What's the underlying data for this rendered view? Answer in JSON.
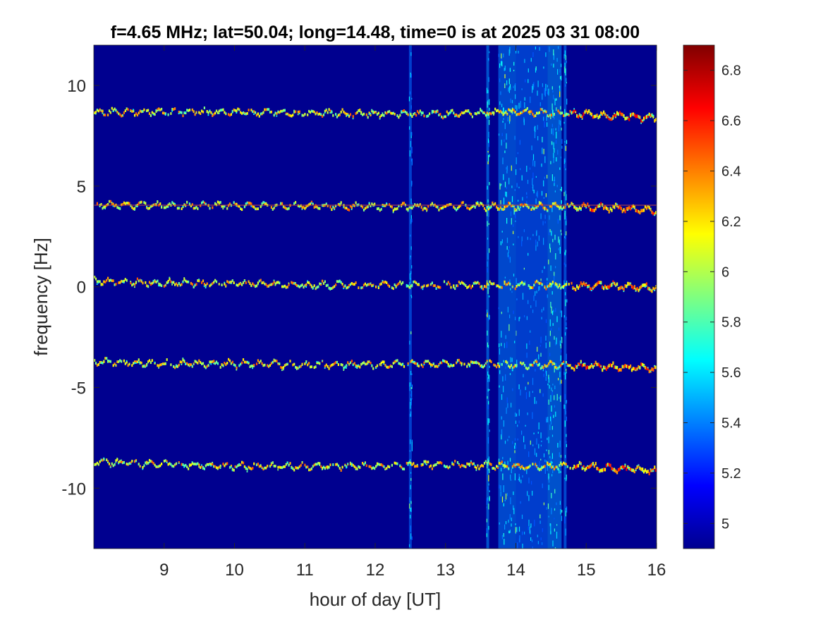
{
  "chart_data": {
    "type": "heatmap",
    "title": "f=4.65 MHz;  lat=50.04; long=14.48, time=0 is at 2025 03 31 08:00",
    "xlabel": "hour of day [UT]",
    "ylabel": "frequency [Hz]",
    "xlim": [
      8,
      16
    ],
    "ylim": [
      -13,
      12
    ],
    "xticks": [
      9,
      10,
      11,
      12,
      13,
      14,
      15,
      16
    ],
    "yticks": [
      10,
      5,
      0,
      -5,
      -10
    ],
    "colormap": "jet",
    "background_color": "#00008f",
    "colorbar": {
      "range": [
        4.9,
        6.9
      ],
      "ticks": [
        "6.8",
        "6.6",
        "6.4",
        "6.2",
        "6",
        "5.8",
        "5.6",
        "5.4",
        "5.2",
        "5"
      ]
    },
    "traces": [
      {
        "name": "",
        "values": [
          [
            8.0,
            8.7
          ],
          [
            9.0,
            8.7
          ],
          [
            10.0,
            8.7
          ],
          [
            11.0,
            8.65
          ],
          [
            12.0,
            8.6
          ],
          [
            13.0,
            8.6
          ],
          [
            14.0,
            8.7
          ],
          [
            15.0,
            8.6
          ],
          [
            15.5,
            8.5
          ],
          [
            16.0,
            8.4
          ]
        ]
      },
      {
        "name": "",
        "values": [
          [
            8.0,
            4.1
          ],
          [
            9.0,
            4.05
          ],
          [
            10.0,
            4.05
          ],
          [
            11.0,
            4.05
          ],
          [
            12.0,
            4.0
          ],
          [
            13.0,
            4.0
          ],
          [
            14.0,
            4.0
          ],
          [
            15.0,
            4.0
          ],
          [
            15.5,
            3.9
          ],
          [
            16.0,
            3.8
          ]
        ]
      },
      {
        "name": "",
        "values": [
          [
            8.0,
            0.3
          ],
          [
            9.0,
            0.2
          ],
          [
            10.0,
            0.2
          ],
          [
            11.0,
            0.1
          ],
          [
            12.0,
            0.1
          ],
          [
            13.0,
            0.1
          ],
          [
            14.0,
            0.1
          ],
          [
            15.0,
            0.1
          ],
          [
            16.0,
            0.0
          ]
        ]
      },
      {
        "name": "",
        "values": [
          [
            8.0,
            -3.7
          ],
          [
            9.0,
            -3.8
          ],
          [
            10.0,
            -3.8
          ],
          [
            11.0,
            -3.85
          ],
          [
            12.0,
            -3.85
          ],
          [
            13.0,
            -3.8
          ],
          [
            14.0,
            -3.85
          ],
          [
            15.0,
            -3.9
          ],
          [
            16.0,
            -4.0
          ]
        ]
      },
      {
        "name": "",
        "values": [
          [
            8.0,
            -8.7
          ],
          [
            9.0,
            -8.8
          ],
          [
            10.0,
            -8.9
          ],
          [
            11.0,
            -8.9
          ],
          [
            12.0,
            -8.9
          ],
          [
            13.0,
            -8.8
          ],
          [
            14.0,
            -8.9
          ],
          [
            15.0,
            -8.9
          ],
          [
            16.0,
            -9.1
          ]
        ]
      }
    ],
    "horizontal_reference_line": {
      "y": 4.05,
      "color": "#c44a3a"
    },
    "broadband_bands": [
      {
        "x": [
          12.48,
          12.52
        ],
        "intensity": 0.45
      },
      {
        "x": [
          13.58,
          13.62
        ],
        "intensity": 0.75
      },
      {
        "x": [
          13.75,
          14.0
        ],
        "intensity": 0.6
      },
      {
        "x": [
          14.0,
          14.45
        ],
        "intensity": 0.45
      },
      {
        "x": [
          14.45,
          14.65
        ],
        "intensity": 0.75
      },
      {
        "x": [
          14.68,
          14.72
        ],
        "intensity": 0.6
      }
    ]
  }
}
